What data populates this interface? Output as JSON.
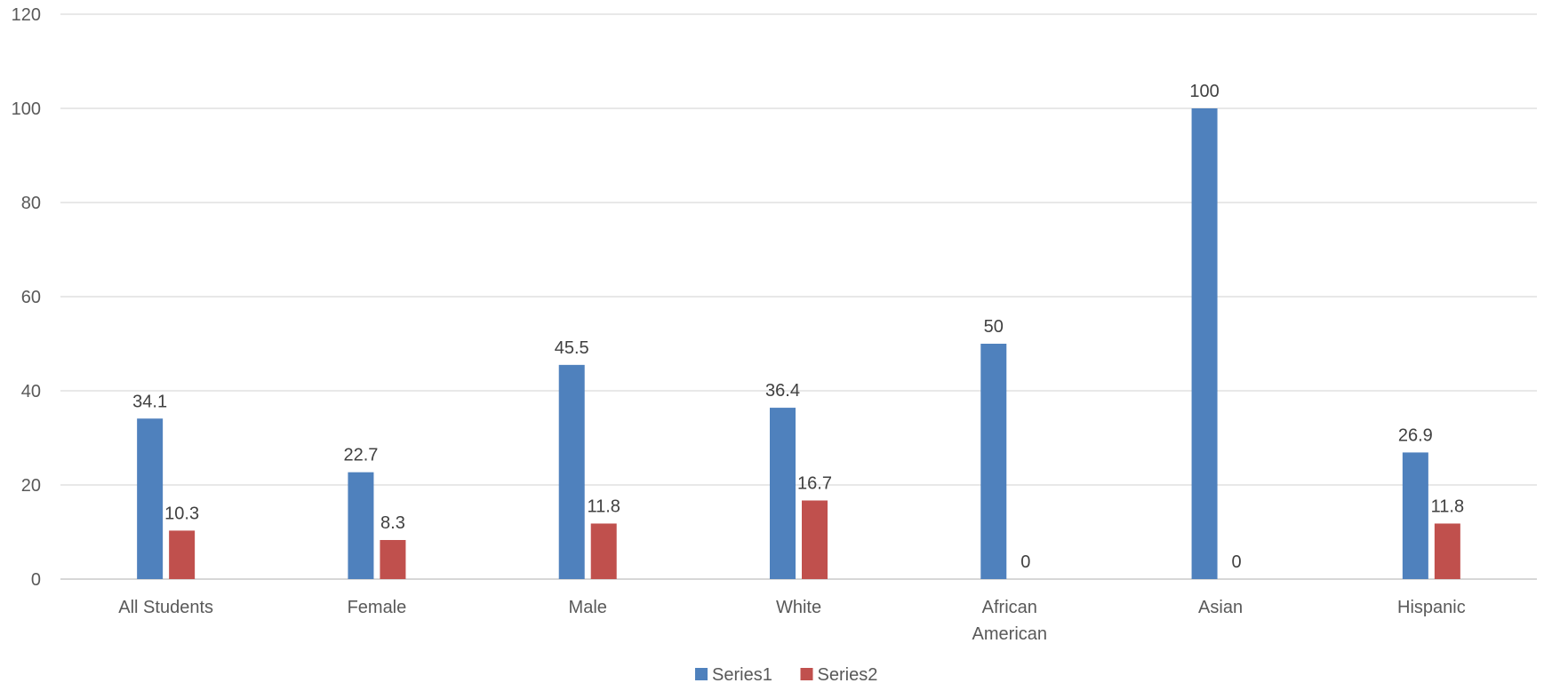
{
  "chart_data": {
    "type": "bar",
    "categories": [
      "All Students",
      "Female",
      "Male",
      "White",
      "African American",
      "Asian",
      "Hispanic"
    ],
    "series": [
      {
        "name": "Series1",
        "color": "#4f81bd",
        "values": [
          34.1,
          22.7,
          45.5,
          36.4,
          50,
          100,
          26.9
        ]
      },
      {
        "name": "Series2",
        "color": "#c0504d",
        "values": [
          10.3,
          8.3,
          11.8,
          16.7,
          0,
          0,
          11.8
        ]
      }
    ],
    "yticks": [
      0,
      20,
      40,
      60,
      80,
      100,
      120
    ],
    "ylim": [
      0,
      120
    ],
    "grid": true,
    "legend_position": "bottom",
    "title": "",
    "xlabel": "",
    "ylabel": ""
  }
}
